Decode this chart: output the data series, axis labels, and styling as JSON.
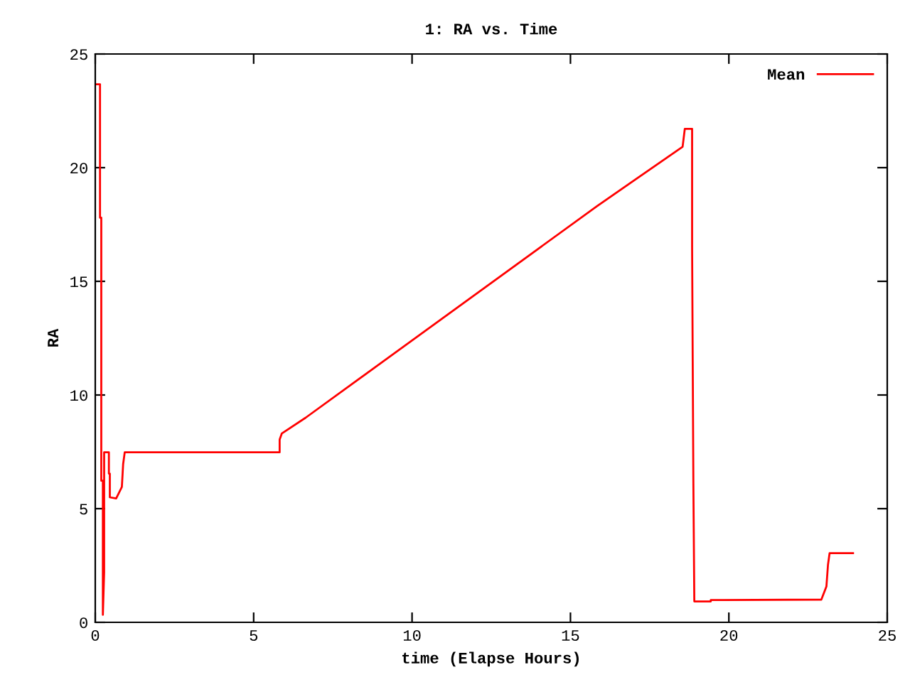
{
  "chart_data": {
    "type": "line",
    "title": "1: RA vs. Time",
    "xlabel": "time (Elapse Hours)",
    "ylabel": "RA",
    "xlim": [
      0,
      25
    ],
    "ylim": [
      0,
      25
    ],
    "xticks": [
      0,
      5,
      10,
      15,
      20,
      25
    ],
    "yticks": [
      0,
      5,
      10,
      15,
      20,
      25
    ],
    "grid": false,
    "legend": "top right",
    "marker": "none",
    "line_style": "solid",
    "series": [
      {
        "name": "Mean",
        "color": "#ff0000",
        "x": [
          0,
          0.15,
          0.15,
          0.19,
          0.19,
          0.24,
          0.24,
          0.28,
          0.28,
          0.43,
          0.43,
          0.46,
          0.46,
          0.66,
          0.84,
          0.88,
          0.93,
          5.82,
          5.82,
          5.89,
          6.64,
          15.84,
          18.54,
          18.61,
          18.84,
          18.84,
          18.88,
          18.91,
          19.43,
          19.43,
          22.92,
          23.08,
          23.13,
          23.18,
          23.92
        ],
        "values": [
          23.67,
          23.67,
          17.8,
          17.8,
          6.23,
          6.23,
          0.33,
          2.2,
          7.48,
          7.48,
          6.54,
          6.54,
          5.5,
          5.45,
          5.96,
          6.96,
          7.48,
          7.48,
          8.04,
          8.31,
          9.0,
          18.31,
          20.92,
          21.71,
          21.71,
          16.5,
          6.12,
          0.92,
          0.92,
          0.98,
          1.0,
          1.58,
          2.54,
          3.04,
          3.04
        ]
      }
    ]
  }
}
